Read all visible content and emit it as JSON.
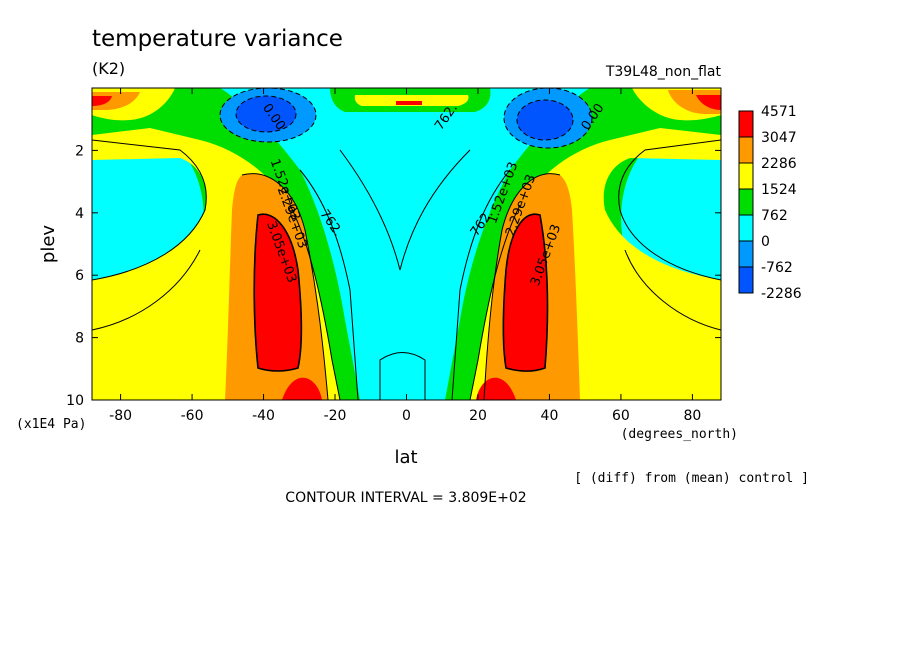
{
  "chart_data": {
    "type": "heatmap",
    "title": "temperature variance",
    "units": "(K2)",
    "experiment": "T39L48_non_flat",
    "xlabel": "lat",
    "x_units": "(degrees_north)",
    "ylabel": "plev",
    "y_units": "(x1E4 Pa)",
    "xlim": [
      -88,
      88
    ],
    "ylim": [
      10,
      0
    ],
    "x_ticks": [
      -80,
      -60,
      -40,
      -20,
      0,
      20,
      40,
      60,
      80
    ],
    "y_ticks": [
      2,
      4,
      6,
      8,
      10
    ],
    "contour_interval_text": "CONTOUR INTERVAL = 3.809E+02",
    "note": "[ (diff) from (mean) control ]",
    "colorbar": {
      "levels": [
        "4571",
        "3047",
        "2286",
        "1524",
        "762",
        "0",
        "-762",
        "-2286"
      ],
      "colors": [
        "#ff0000",
        "#ff9900",
        "#ffff00",
        "#00dd00",
        "#00ffff",
        "#0099ff",
        "#0055ff"
      ]
    },
    "contour_labels": [
      {
        "text": "0.00",
        "lat": -38,
        "plev": 1.0
      },
      {
        "text": "0.00",
        "lat": 53,
        "plev": 1.0
      },
      {
        "text": "762.",
        "lat": 12,
        "plev": 1.0
      },
      {
        "text": "762.",
        "lat": -22,
        "plev": 4.4
      },
      {
        "text": "762.",
        "lat": 22,
        "plev": 4.4
      },
      {
        "text": "1.52e+03",
        "lat": -35,
        "plev": 3.3
      },
      {
        "text": "2.29e+03",
        "lat": -33,
        "plev": 4.2
      },
      {
        "text": "3.05e+03",
        "lat": -36,
        "plev": 5.3
      },
      {
        "text": "1.52e+03",
        "lat": 28,
        "plev": 3.4
      },
      {
        "text": "2.29e+03",
        "lat": 33,
        "plev": 3.8
      },
      {
        "text": "3.05e+03",
        "lat": 40,
        "plev": 5.4
      }
    ]
  }
}
